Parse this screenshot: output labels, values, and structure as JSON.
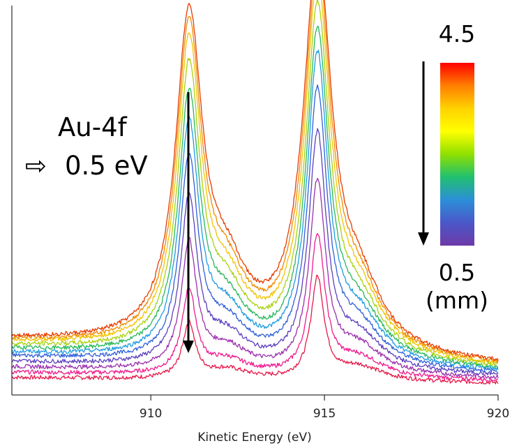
{
  "chart_data": {
    "type": "line",
    "title": "",
    "xlabel": "Kinetic Energy (eV)",
    "ylabel": "",
    "xlim": [
      906,
      920
    ],
    "ylim": [
      0,
      1
    ],
    "xticks": [
      910,
      915,
      920
    ],
    "xtick_labels": [
      "910",
      "915",
      "920"
    ],
    "grid": false,
    "peaks_eV": [
      911.1,
      914.8
    ],
    "series": [
      {
        "color": "#e6194b",
        "peak1": 0.16,
        "peak2": 0.29,
        "baseline": 0.03
      },
      {
        "color": "#ee1c8e",
        "peak1": 0.24,
        "peak2": 0.4,
        "baseline": 0.045
      },
      {
        "color": "#9b2fae",
        "peak1": 0.36,
        "peak2": 0.54,
        "baseline": 0.06
      },
      {
        "color": "#5b3fbf",
        "peak1": 0.47,
        "peak2": 0.66,
        "baseline": 0.075
      },
      {
        "color": "#2f5fd8",
        "peak1": 0.57,
        "peak2": 0.77,
        "baseline": 0.09
      },
      {
        "color": "#1e9be0",
        "peak1": 0.66,
        "peak2": 0.86,
        "baseline": 0.1
      },
      {
        "color": "#27b85a",
        "peak1": 0.73,
        "peak2": 0.92,
        "baseline": 0.11
      },
      {
        "color": "#a8d20e",
        "peak1": 0.8,
        "peak2": 0.98,
        "baseline": 0.12
      },
      {
        "color": "#f2c300",
        "peak1": 0.86,
        "peak2": 1.04,
        "baseline": 0.13
      },
      {
        "color": "#f08a00",
        "peak1": 0.9,
        "peak2": 1.08,
        "baseline": 0.135
      },
      {
        "color": "#e63b00",
        "peak1": 0.93,
        "peak2": 1.11,
        "baseline": 0.14
      }
    ],
    "annotations": {
      "element": "Au-4f",
      "shift_arrow": "⇨",
      "shift": "0.5 eV"
    },
    "colorbar": {
      "top_label": "4.5",
      "bottom_label": "0.5",
      "unit_label": "(mm)",
      "colors": [
        "#ff0000",
        "#ff7f00",
        "#ffd200",
        "#ffff00",
        "#8fe000",
        "#20c070",
        "#2c8fd8",
        "#4a57c8",
        "#6e3aa8"
      ]
    }
  }
}
